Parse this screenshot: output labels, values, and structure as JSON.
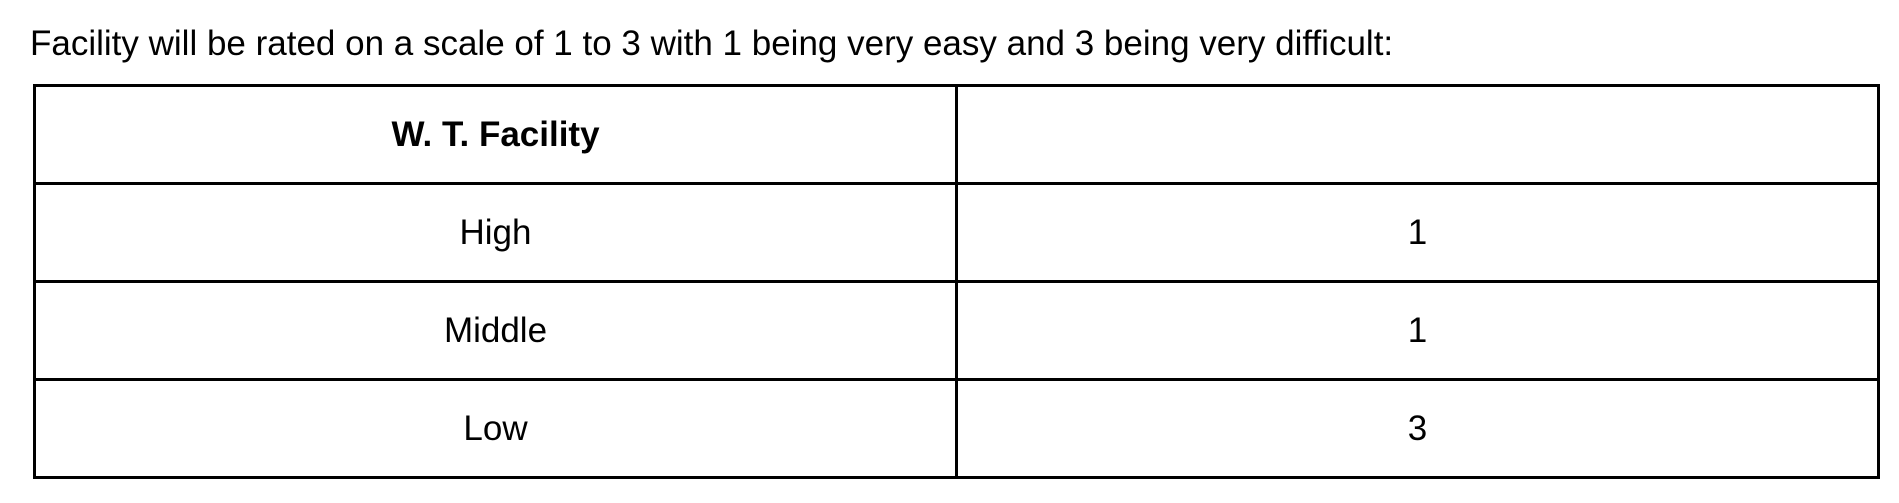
{
  "caption": "Facility will be rated on a scale of 1 to 3 with 1 being very easy and 3 being very difficult:",
  "table": {
    "header": {
      "label": "W. T. Facility",
      "value": ""
    },
    "rows": [
      {
        "label": "High",
        "value": "1"
      },
      {
        "label": "Middle",
        "value": "1"
      },
      {
        "label": "Low",
        "value": "3"
      }
    ]
  },
  "colors": {
    "text": "#000000",
    "border": "#000000",
    "background": "#ffffff"
  }
}
